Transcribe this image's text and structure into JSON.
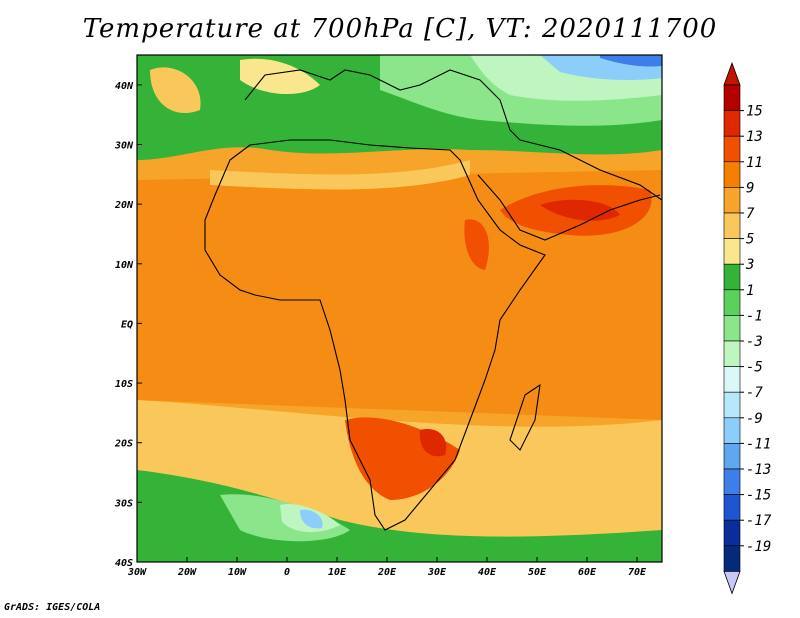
{
  "title": "Temperature at 700hPa [C], VT: 2020111700",
  "footer": "GrADS: IGES/COLA",
  "map": {
    "region": "Africa",
    "lon_range": [
      -30,
      75
    ],
    "lat_range": [
      -40,
      45
    ],
    "lon_labels": [
      "30W",
      "20W",
      "10W",
      "0",
      "10E",
      "20E",
      "30E",
      "40E",
      "50E",
      "60E",
      "70E"
    ],
    "lat_labels": [
      "40N",
      "30N",
      "20N",
      "10N",
      "EQ",
      "10S",
      "20S",
      "30S",
      "40S"
    ]
  },
  "colorbar": {
    "levels": [
      "15",
      "13",
      "11",
      "9",
      "7",
      "5",
      "3",
      "1",
      "-1",
      "-3",
      "-5",
      "-7",
      "-9",
      "-11",
      "-13",
      "-15",
      "-17",
      "-19"
    ],
    "colors": [
      "#b40000",
      "#e02800",
      "#f05000",
      "#f57f00",
      "#f7a52a",
      "#fac85a",
      "#fae68c",
      "#34b338",
      "#5bd15b",
      "#8be68b",
      "#bef5c0",
      "#dcf7f7",
      "#b7e7fb",
      "#8ccdfa",
      "#5fa8f0",
      "#3d7ee8",
      "#1f55d2",
      "#0b2d9b",
      "#062a7a"
    ],
    "top_arrow_color": "#c31400",
    "bottom_arrow_color": "#c8c8f7"
  }
}
